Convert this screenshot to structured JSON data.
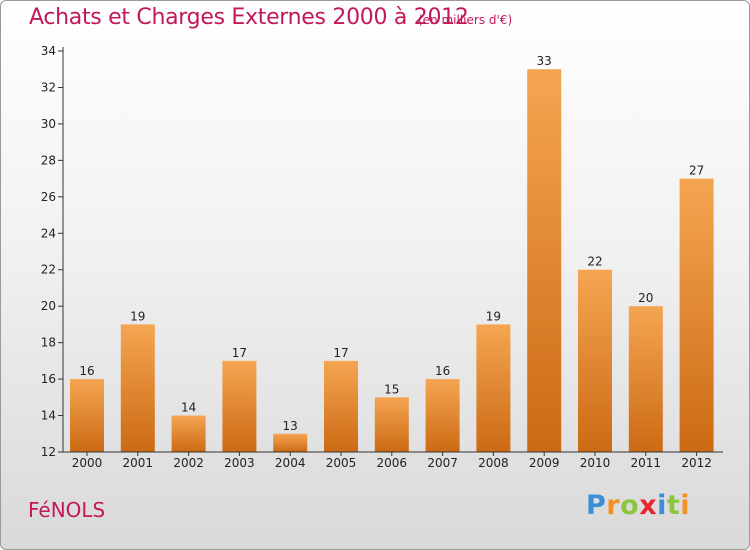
{
  "title": "Achats et Charges Externes 2000 à 2012",
  "subtitle": "(en milliers d'€)",
  "commune": "FéNOLS",
  "brand": {
    "letters": [
      "P",
      "r",
      "o",
      "x",
      "i",
      "t",
      "i"
    ],
    "colors": [
      "#3a8fd8",
      "#f29222",
      "#8cc63f",
      "#e8262e",
      "#3a8fd8",
      "#8cc63f",
      "#f29222"
    ]
  },
  "colors": {
    "title": "#c2185b",
    "bar_top": "#f5a552",
    "bar_bottom": "#cc6a14",
    "axis": "#333333"
  },
  "chart_data": {
    "type": "bar",
    "title": "Achats et Charges Externes 2000 à 2012",
    "subtitle": "(en milliers d'€)",
    "categories": [
      "2000",
      "2001",
      "2002",
      "2003",
      "2004",
      "2005",
      "2006",
      "2007",
      "2008",
      "2009",
      "2010",
      "2011",
      "2012"
    ],
    "values": [
      16,
      19,
      14,
      17,
      13,
      17,
      15,
      16,
      19,
      33,
      22,
      20,
      27
    ],
    "ylim": [
      12,
      34
    ],
    "yticks": [
      12,
      14,
      16,
      18,
      20,
      22,
      24,
      26,
      28,
      30,
      32,
      34
    ],
    "grid": false,
    "legend": "none"
  }
}
